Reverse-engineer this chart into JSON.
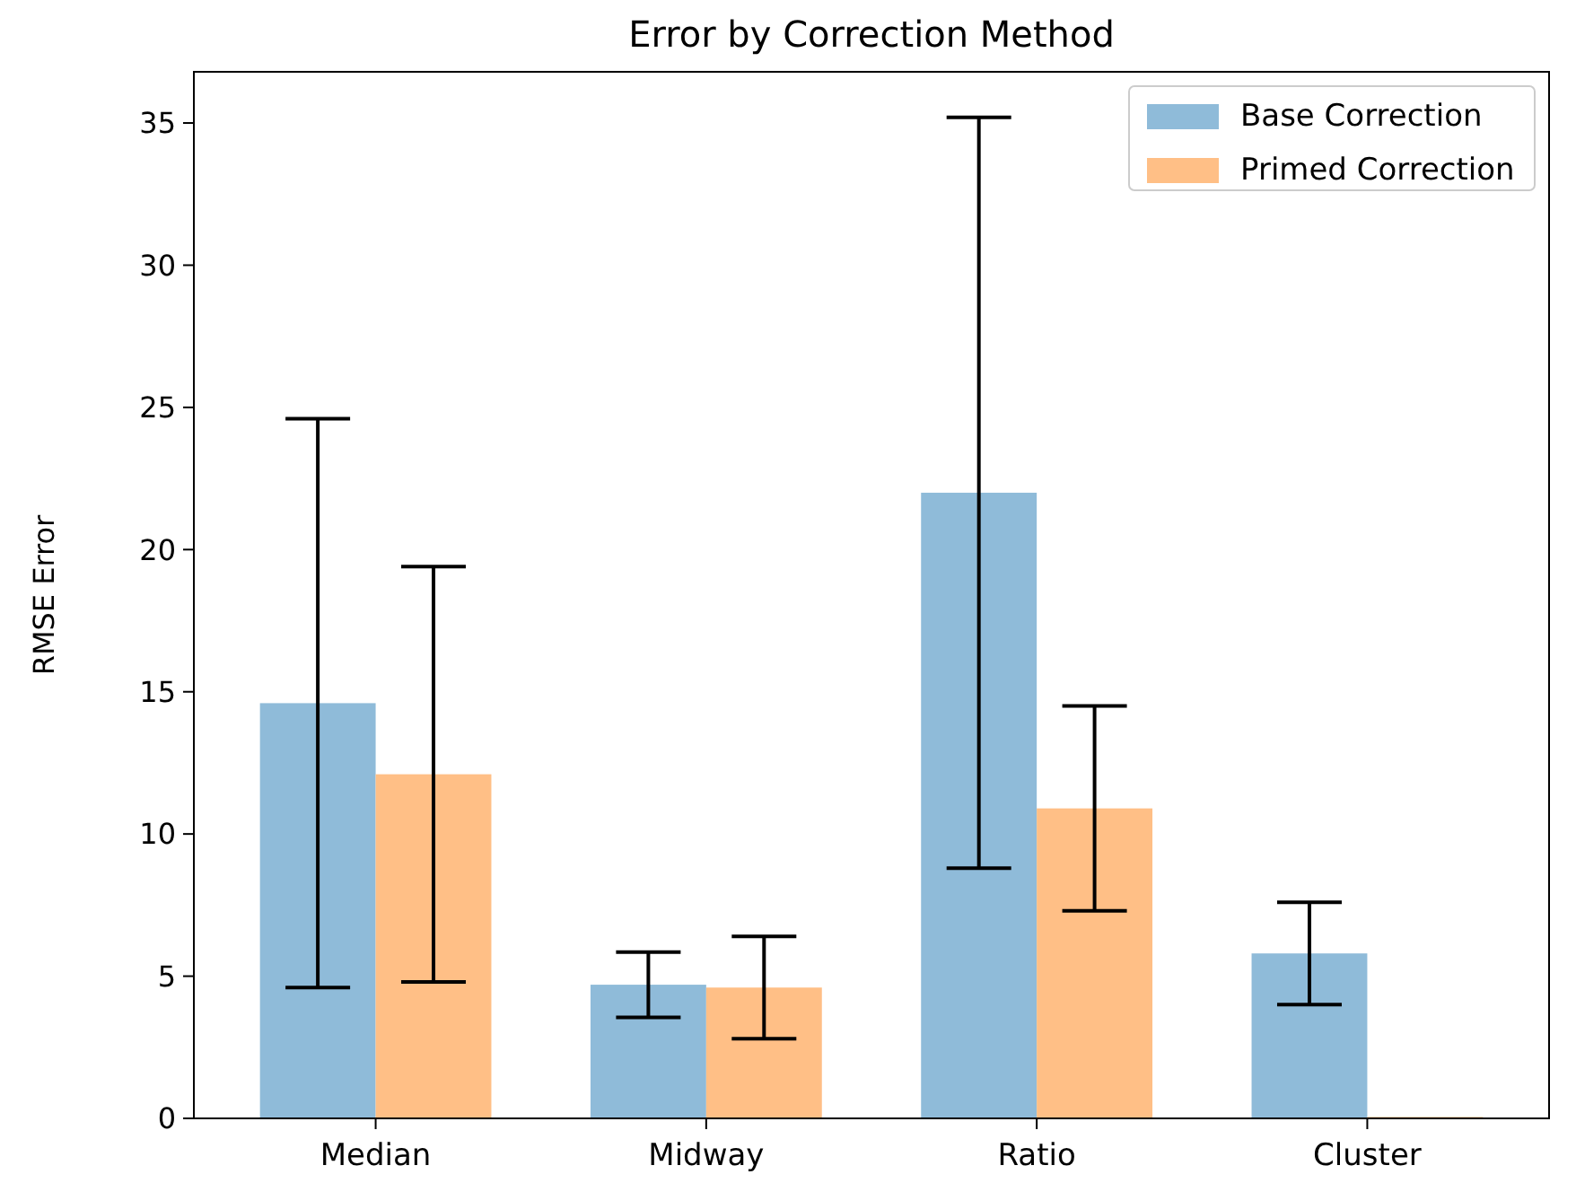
{
  "chart_data": {
    "type": "bar",
    "title": "Error by Correction Method",
    "ylabel": "RMSE Error",
    "categories": [
      "Median",
      "Midway",
      "Ratio",
      "Cluster"
    ],
    "series": [
      {
        "name": "Base Correction",
        "color": "#8fbbd9",
        "values": [
          14.6,
          4.7,
          22.0,
          5.8
        ],
        "errors": [
          10.0,
          1.15,
          13.2,
          1.8
        ]
      },
      {
        "name": "Primed Correction",
        "color": "#ffbf86",
        "values": [
          12.1,
          4.6,
          10.9,
          0.05
        ],
        "errors": [
          7.3,
          1.8,
          3.6,
          null
        ]
      }
    ],
    "ylim": [
      0,
      36.8
    ],
    "yticks": [
      0,
      5,
      10,
      15,
      20,
      25,
      30,
      35
    ],
    "grid": false,
    "legend": "top right"
  }
}
